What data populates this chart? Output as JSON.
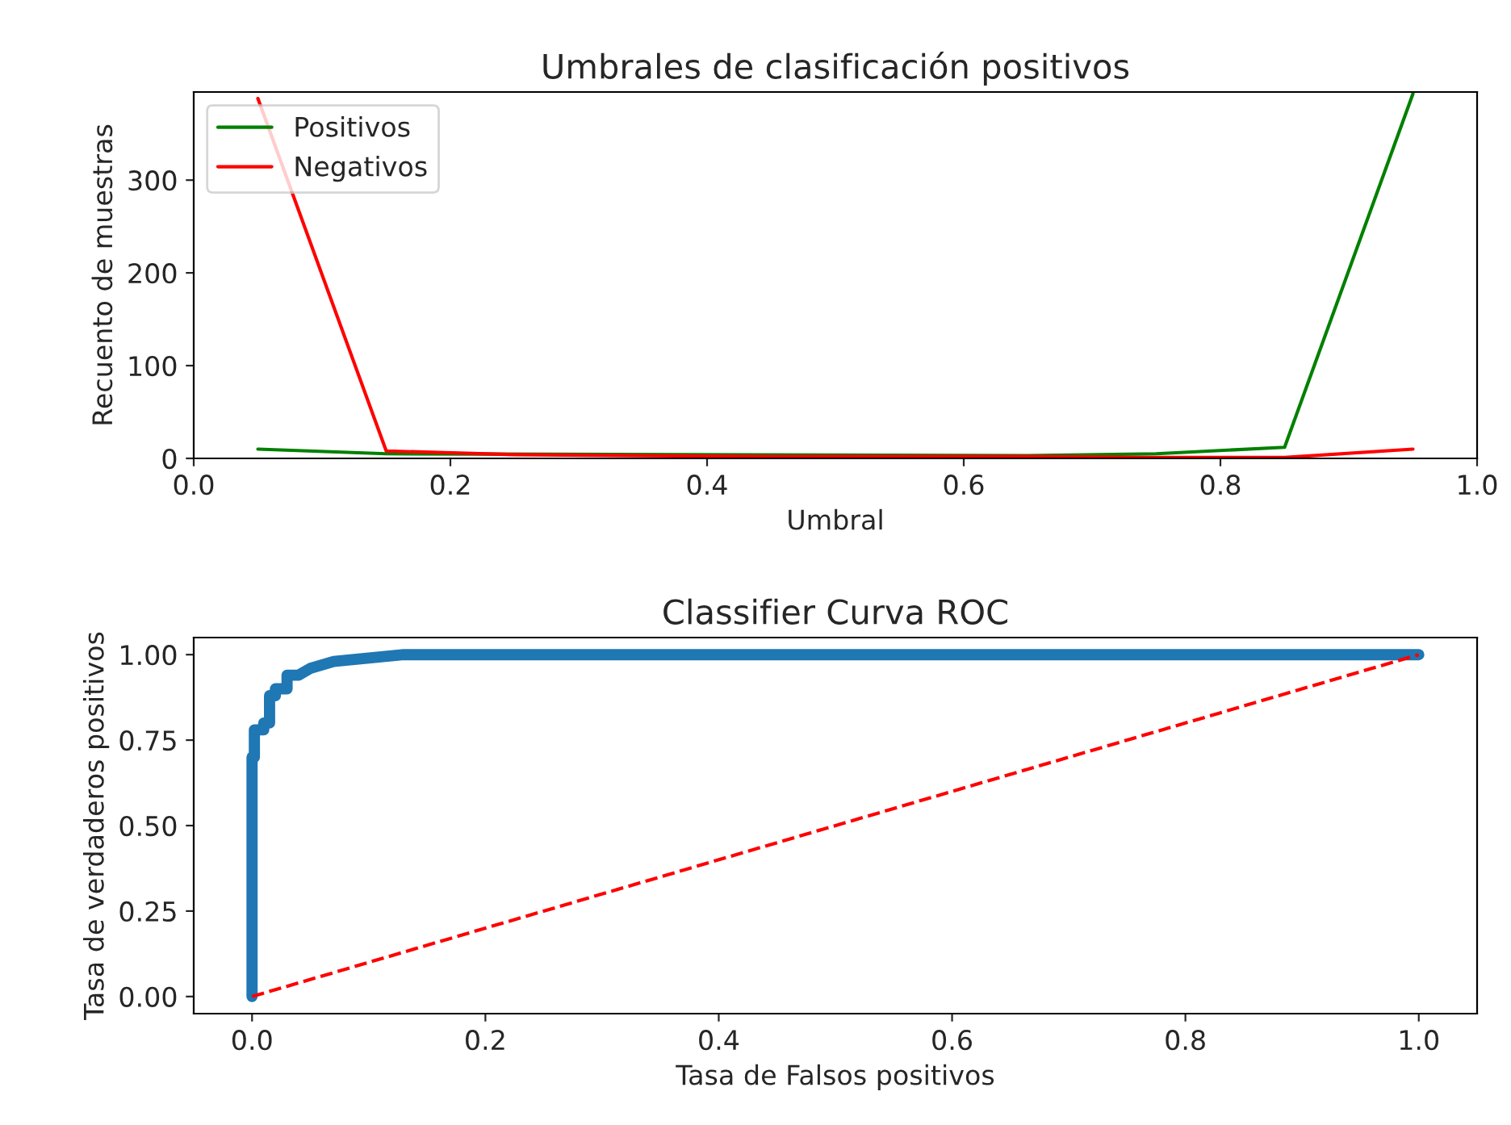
{
  "chart_data": [
    {
      "type": "line",
      "title": "Umbrales de clasificación positivos",
      "xlabel": "Umbral",
      "ylabel": "Recuento de muestras",
      "x": [
        0.05,
        0.15,
        0.25,
        0.35,
        0.45,
        0.55,
        0.65,
        0.75,
        0.85,
        0.95
      ],
      "series": [
        {
          "name": "Positivos",
          "color": "#008000",
          "values": [
            10,
            5,
            null,
            null,
            null,
            null,
            3,
            5,
            12,
            393
          ]
        },
        {
          "name": "Negativos",
          "color": "#ff0000",
          "values": [
            388,
            8,
            4,
            3,
            2,
            2,
            2,
            1,
            1,
            10
          ]
        }
      ],
      "xlim": [
        0,
        1
      ],
      "ylim": [
        0,
        395
      ],
      "xticks": [
        {
          "value": 0,
          "label": "0.0"
        },
        {
          "value": 0.2,
          "label": "0.2"
        },
        {
          "value": 0.4,
          "label": "0.4"
        },
        {
          "value": 0.6,
          "label": "0.6"
        },
        {
          "value": 0.8,
          "label": "0.8"
        },
        {
          "value": 1,
          "label": "1.0"
        }
      ],
      "yticks": [
        0,
        100,
        200,
        300
      ],
      "legend": "top left",
      "grid": false
    },
    {
      "type": "line",
      "title": "Classifier Curva ROC",
      "xlabel": "Tasa de Falsos positivos",
      "ylabel": "Tasa de verdaderos positivos",
      "series": [
        {
          "color": "#1f77b4",
          "line_style": "solid",
          "x": [
            0,
            0,
            0.002,
            0.002,
            0.01,
            0.01,
            0.015,
            0.015,
            0.02,
            0.02,
            0.03,
            0.03,
            0.04,
            0.05,
            0.07,
            0.1,
            0.13,
            1
          ],
          "values": [
            0,
            0.7,
            0.7,
            0.78,
            0.78,
            0.8,
            0.8,
            0.88,
            0.88,
            0.9,
            0.9,
            0.94,
            0.94,
            0.96,
            0.98,
            0.99,
            1,
            1
          ]
        },
        {
          "color": "#ff0000",
          "line_style": "dashed",
          "x": [
            0,
            1
          ],
          "values": [
            0,
            1
          ]
        }
      ],
      "xlim": [
        -0.05,
        1.05
      ],
      "ylim": [
        -0.05,
        1.05
      ],
      "xticks": [
        {
          "value": 0,
          "label": "0.0"
        },
        {
          "value": 0.2,
          "label": "0.2"
        },
        {
          "value": 0.4,
          "label": "0.4"
        },
        {
          "value": 0.6,
          "label": "0.6"
        },
        {
          "value": 0.8,
          "label": "0.8"
        },
        {
          "value": 1,
          "label": "1.0"
        }
      ],
      "yticks": [
        {
          "value": 0,
          "label": "0.00"
        },
        {
          "value": 0.25,
          "label": "0.25"
        },
        {
          "value": 0.5,
          "label": "0.50"
        },
        {
          "value": 0.75,
          "label": "0.75"
        },
        {
          "value": 1,
          "label": "1.00"
        }
      ],
      "legend": false,
      "grid": false
    }
  ]
}
